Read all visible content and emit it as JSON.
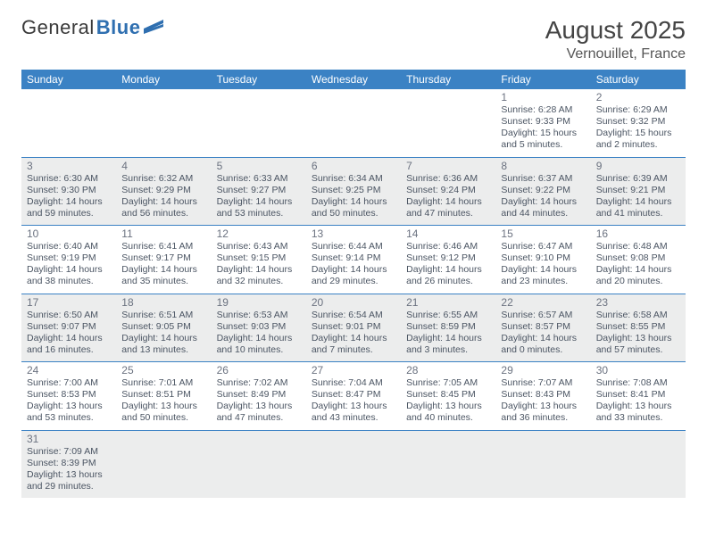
{
  "brand": {
    "part1": "General",
    "part2": "Blue",
    "accent": "#2f6fb0"
  },
  "title": "August 2025",
  "location": "Vernouillet, France",
  "colors": {
    "header": "#3b82c4",
    "alt_row": "#eceded",
    "text": "#4b5563"
  },
  "weekdays": [
    "Sunday",
    "Monday",
    "Tuesday",
    "Wednesday",
    "Thursday",
    "Friday",
    "Saturday"
  ],
  "weeks": [
    [
      null,
      null,
      null,
      null,
      null,
      {
        "n": "1",
        "sunrise": "6:28 AM",
        "sunset": "9:33 PM",
        "day_h": "15",
        "day_m": "5"
      },
      {
        "n": "2",
        "sunrise": "6:29 AM",
        "sunset": "9:32 PM",
        "day_h": "15",
        "day_m": "2"
      }
    ],
    [
      {
        "n": "3",
        "sunrise": "6:30 AM",
        "sunset": "9:30 PM",
        "day_h": "14",
        "day_m": "59"
      },
      {
        "n": "4",
        "sunrise": "6:32 AM",
        "sunset": "9:29 PM",
        "day_h": "14",
        "day_m": "56"
      },
      {
        "n": "5",
        "sunrise": "6:33 AM",
        "sunset": "9:27 PM",
        "day_h": "14",
        "day_m": "53"
      },
      {
        "n": "6",
        "sunrise": "6:34 AM",
        "sunset": "9:25 PM",
        "day_h": "14",
        "day_m": "50"
      },
      {
        "n": "7",
        "sunrise": "6:36 AM",
        "sunset": "9:24 PM",
        "day_h": "14",
        "day_m": "47"
      },
      {
        "n": "8",
        "sunrise": "6:37 AM",
        "sunset": "9:22 PM",
        "day_h": "14",
        "day_m": "44"
      },
      {
        "n": "9",
        "sunrise": "6:39 AM",
        "sunset": "9:21 PM",
        "day_h": "14",
        "day_m": "41"
      }
    ],
    [
      {
        "n": "10",
        "sunrise": "6:40 AM",
        "sunset": "9:19 PM",
        "day_h": "14",
        "day_m": "38"
      },
      {
        "n": "11",
        "sunrise": "6:41 AM",
        "sunset": "9:17 PM",
        "day_h": "14",
        "day_m": "35"
      },
      {
        "n": "12",
        "sunrise": "6:43 AM",
        "sunset": "9:15 PM",
        "day_h": "14",
        "day_m": "32"
      },
      {
        "n": "13",
        "sunrise": "6:44 AM",
        "sunset": "9:14 PM",
        "day_h": "14",
        "day_m": "29"
      },
      {
        "n": "14",
        "sunrise": "6:46 AM",
        "sunset": "9:12 PM",
        "day_h": "14",
        "day_m": "26"
      },
      {
        "n": "15",
        "sunrise": "6:47 AM",
        "sunset": "9:10 PM",
        "day_h": "14",
        "day_m": "23"
      },
      {
        "n": "16",
        "sunrise": "6:48 AM",
        "sunset": "9:08 PM",
        "day_h": "14",
        "day_m": "20"
      }
    ],
    [
      {
        "n": "17",
        "sunrise": "6:50 AM",
        "sunset": "9:07 PM",
        "day_h": "14",
        "day_m": "16"
      },
      {
        "n": "18",
        "sunrise": "6:51 AM",
        "sunset": "9:05 PM",
        "day_h": "14",
        "day_m": "13"
      },
      {
        "n": "19",
        "sunrise": "6:53 AM",
        "sunset": "9:03 PM",
        "day_h": "14",
        "day_m": "10"
      },
      {
        "n": "20",
        "sunrise": "6:54 AM",
        "sunset": "9:01 PM",
        "day_h": "14",
        "day_m": "7"
      },
      {
        "n": "21",
        "sunrise": "6:55 AM",
        "sunset": "8:59 PM",
        "day_h": "14",
        "day_m": "3"
      },
      {
        "n": "22",
        "sunrise": "6:57 AM",
        "sunset": "8:57 PM",
        "day_h": "14",
        "day_m": "0"
      },
      {
        "n": "23",
        "sunrise": "6:58 AM",
        "sunset": "8:55 PM",
        "day_h": "13",
        "day_m": "57"
      }
    ],
    [
      {
        "n": "24",
        "sunrise": "7:00 AM",
        "sunset": "8:53 PM",
        "day_h": "13",
        "day_m": "53"
      },
      {
        "n": "25",
        "sunrise": "7:01 AM",
        "sunset": "8:51 PM",
        "day_h": "13",
        "day_m": "50"
      },
      {
        "n": "26",
        "sunrise": "7:02 AM",
        "sunset": "8:49 PM",
        "day_h": "13",
        "day_m": "47"
      },
      {
        "n": "27",
        "sunrise": "7:04 AM",
        "sunset": "8:47 PM",
        "day_h": "13",
        "day_m": "43"
      },
      {
        "n": "28",
        "sunrise": "7:05 AM",
        "sunset": "8:45 PM",
        "day_h": "13",
        "day_m": "40"
      },
      {
        "n": "29",
        "sunrise": "7:07 AM",
        "sunset": "8:43 PM",
        "day_h": "13",
        "day_m": "36"
      },
      {
        "n": "30",
        "sunrise": "7:08 AM",
        "sunset": "8:41 PM",
        "day_h": "13",
        "day_m": "33"
      }
    ],
    [
      {
        "n": "31",
        "sunrise": "7:09 AM",
        "sunset": "8:39 PM",
        "day_h": "13",
        "day_m": "29"
      },
      null,
      null,
      null,
      null,
      null,
      null
    ]
  ],
  "labels": {
    "sunrise": "Sunrise:",
    "sunset": "Sunset:",
    "daylight": "Daylight:",
    "hours": "hours",
    "and": "and",
    "minutes": "minutes."
  }
}
